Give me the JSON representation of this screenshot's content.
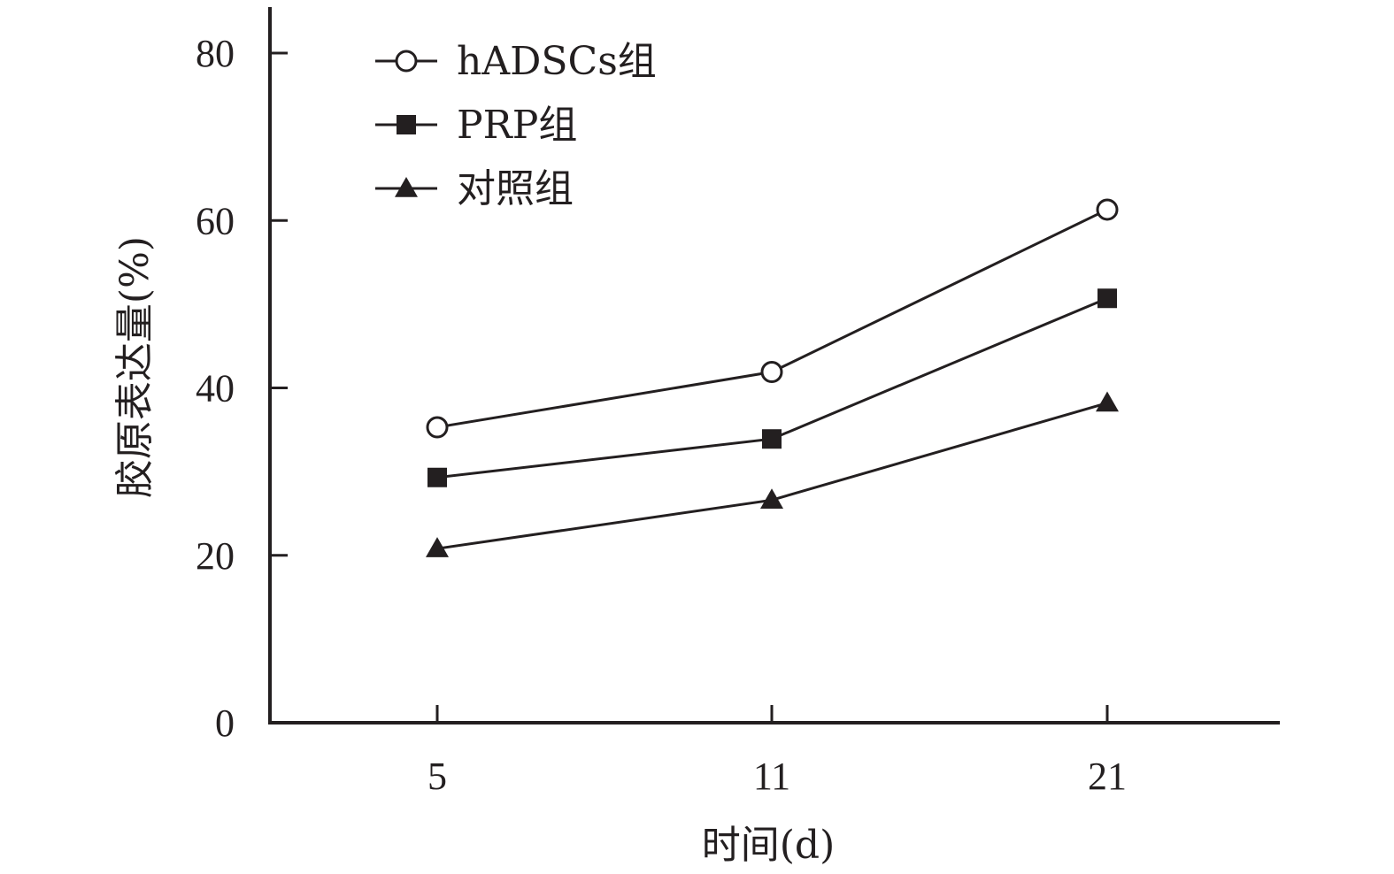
{
  "chart_data": {
    "type": "line",
    "title": "",
    "xlabel": "时间(d)",
    "ylabel": "胶原表达量(%)",
    "categories": [
      "5",
      "11",
      "21"
    ],
    "x": [
      5,
      11,
      21
    ],
    "ylim": [
      0,
      80
    ],
    "yticks": [
      "0",
      "20",
      "40",
      "60",
      "80"
    ],
    "grid": false,
    "legend_position": "top-left",
    "series": [
      {
        "name": "hADSCs组",
        "marker": "open-circle",
        "values": [
          35.3,
          41.9,
          61.3
        ]
      },
      {
        "name": "PRP组",
        "marker": "filled-square",
        "values": [
          29.3,
          33.9,
          50.7
        ]
      },
      {
        "name": "对照组",
        "marker": "filled-triangle",
        "values": [
          20.8,
          26.6,
          38.2
        ]
      }
    ],
    "colors": {
      "line": "#231f20",
      "marker_fill": "#231f20",
      "open_fill": "#ffffff",
      "background": "#ffffff"
    }
  }
}
